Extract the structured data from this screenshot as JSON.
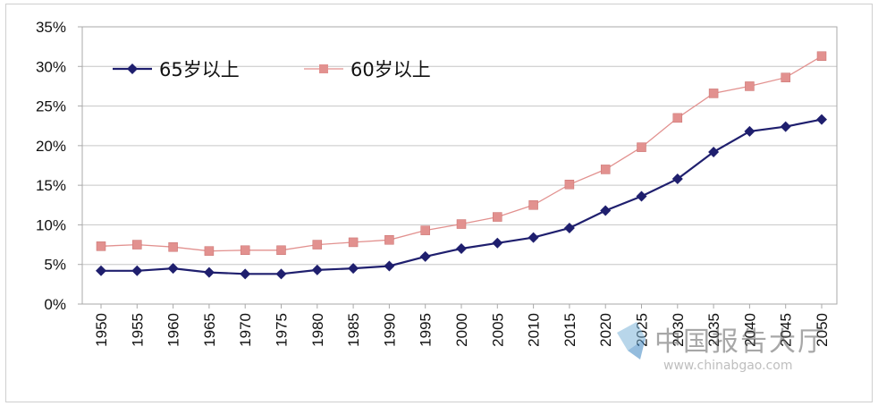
{
  "chart_data": {
    "type": "line",
    "title": "",
    "xlabel": "",
    "ylabel": "",
    "ylim": [
      0,
      35
    ],
    "yticks": [
      "0%",
      "5%",
      "10%",
      "15%",
      "20%",
      "25%",
      "30%",
      "35%"
    ],
    "y_tick_values": [
      0,
      5,
      10,
      15,
      20,
      25,
      30,
      35
    ],
    "categories": [
      "1950",
      "1955",
      "1960",
      "1965",
      "1970",
      "1975",
      "1980",
      "1985",
      "1990",
      "1995",
      "2000",
      "2005",
      "2010",
      "2015",
      "2020",
      "2025",
      "2030",
      "2035",
      "2040",
      "2045",
      "2050"
    ],
    "series": [
      {
        "name": "65岁以上",
        "color": "#1f1f6e",
        "marker": "diamond",
        "values": [
          4.2,
          4.2,
          4.5,
          4.0,
          3.8,
          3.8,
          4.3,
          4.5,
          4.8,
          6.0,
          7.0,
          7.7,
          8.4,
          9.6,
          11.8,
          13.6,
          15.8,
          19.2,
          21.8,
          22.4,
          23.3
        ]
      },
      {
        "name": "60岁以上",
        "color": "#e2918f",
        "marker": "square",
        "values": [
          7.3,
          7.5,
          7.2,
          6.7,
          6.8,
          6.8,
          7.5,
          7.8,
          8.1,
          9.3,
          10.1,
          11.0,
          12.5,
          15.1,
          17.0,
          19.8,
          23.5,
          26.6,
          27.5,
          28.6,
          31.3
        ]
      }
    ],
    "legend_position": "top-left",
    "grid": true
  },
  "watermark": {
    "text": "中国报告大厅",
    "url": "www.chinabgao.com"
  }
}
